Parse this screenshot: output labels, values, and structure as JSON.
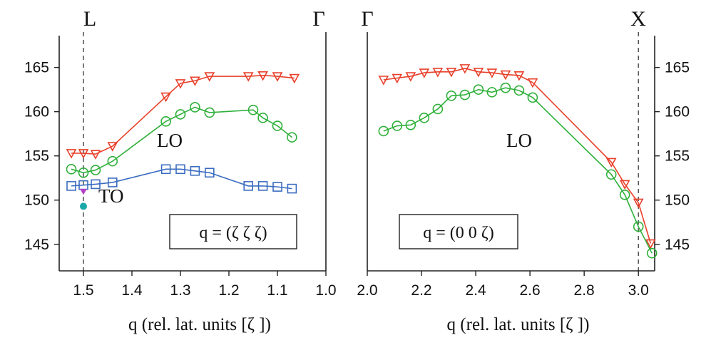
{
  "chart_data": [
    {
      "type": "line",
      "xlabel": "q  (rel. lat. units [ζ ])",
      "ylabel": "",
      "xlim": [
        1.55,
        1.0
      ],
      "ylim": [
        142,
        169
      ],
      "x_ticks": [
        "1.5",
        "1.4",
        "1.3",
        "1.2",
        "1.1",
        "1.0"
      ],
      "y_ticks": [
        "165",
        "160",
        "155",
        "150",
        "145"
      ],
      "y_axis_side": "left",
      "top_labels": {
        "left": "L",
        "right": "Γ"
      },
      "dashed_line_x": 1.5,
      "annotations": [
        "LO",
        "TO"
      ],
      "legend_box": "q = (ζ ζ ζ)",
      "series": [
        {
          "color": "#e8402a",
          "marker": "triangle-down",
          "x": [
            1.525,
            1.5,
            1.475,
            1.44,
            1.33,
            1.3,
            1.27,
            1.24,
            1.16,
            1.13,
            1.1,
            1.065
          ],
          "y": [
            155.3,
            155.3,
            155.2,
            156.1,
            161.7,
            163.2,
            163.5,
            164.0,
            164.0,
            164.1,
            164.0,
            163.8
          ]
        },
        {
          "color": "#2fb03a",
          "marker": "circle",
          "x": [
            1.525,
            1.5,
            1.475,
            1.44,
            1.33,
            1.3,
            1.27,
            1.24,
            1.15,
            1.13,
            1.1,
            1.07
          ],
          "y": [
            153.5,
            153.1,
            153.4,
            154.4,
            158.9,
            159.7,
            160.5,
            159.9,
            160.2,
            159.3,
            158.4,
            157.1
          ]
        },
        {
          "color": "#3a6cc0",
          "marker": "square",
          "x": [
            1.525,
            1.5,
            1.475,
            1.44,
            1.33,
            1.3,
            1.27,
            1.24,
            1.16,
            1.13,
            1.1,
            1.07
          ],
          "y": [
            151.6,
            151.7,
            151.8,
            152.0,
            153.5,
            153.5,
            153.3,
            153.1,
            151.6,
            151.6,
            151.5,
            151.3
          ]
        },
        {
          "color": "#b040c8",
          "marker": "triangle-down-small",
          "x": [
            1.5
          ],
          "y": [
            151.0
          ]
        },
        {
          "color": "#1aa8a8",
          "marker": "dot",
          "x": [
            1.5
          ],
          "y": [
            149.3
          ]
        }
      ]
    },
    {
      "type": "line",
      "xlabel": "q  (rel. lat. units [ζ ])",
      "ylabel": "",
      "xlim": [
        2.0,
        3.06
      ],
      "ylim": [
        142,
        169
      ],
      "x_ticks": [
        "2.0",
        "2.2",
        "2.4",
        "2.6",
        "2.8",
        "3.0"
      ],
      "y_ticks": [
        "165",
        "160",
        "155",
        "150",
        "145"
      ],
      "y_axis_side": "right",
      "top_labels": {
        "left": "Γ",
        "right": "X"
      },
      "dashed_line_x": 3.0,
      "annotations": [
        "LO"
      ],
      "legend_box": "q = (0 0 ζ)",
      "series": [
        {
          "color": "#e8402a",
          "marker": "triangle-down",
          "x": [
            2.06,
            2.11,
            2.16,
            2.21,
            2.26,
            2.31,
            2.36,
            2.41,
            2.46,
            2.51,
            2.56,
            2.61,
            2.9,
            2.95,
            3.0,
            3.045
          ],
          "y": [
            163.6,
            163.8,
            164.0,
            164.4,
            164.5,
            164.5,
            164.9,
            164.5,
            164.4,
            164.2,
            164.1,
            163.3,
            154.3,
            151.8,
            149.7,
            145.1
          ]
        },
        {
          "color": "#2fb03a",
          "marker": "circle",
          "x": [
            2.06,
            2.11,
            2.16,
            2.21,
            2.26,
            2.31,
            2.36,
            2.41,
            2.46,
            2.51,
            2.56,
            2.61,
            2.9,
            2.95,
            3.0,
            3.05
          ],
          "y": [
            157.8,
            158.4,
            158.5,
            159.3,
            160.3,
            161.8,
            161.9,
            162.5,
            162.2,
            162.7,
            162.4,
            161.6,
            152.9,
            150.6,
            147.0,
            144.0
          ]
        }
      ]
    }
  ]
}
